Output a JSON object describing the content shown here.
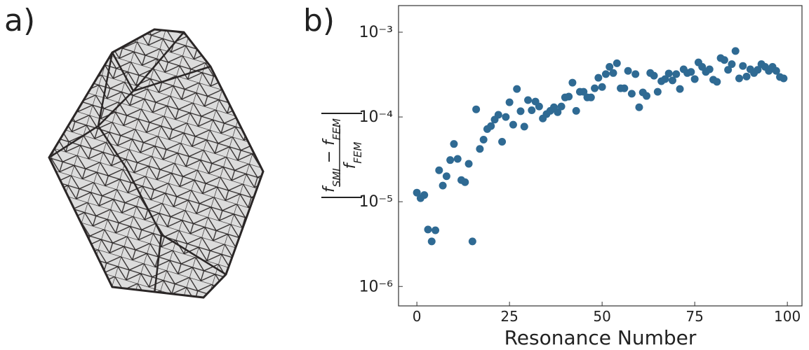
{
  "panel_labels": [
    "a)",
    "b)"
  ],
  "chart_data": {
    "type": "scatter",
    "xlabel": "Resonance Number",
    "ylabel": {
      "numerator": [
        "f",
        "SMI",
        " − f",
        "FEM"
      ],
      "denominator": [
        "f",
        "FEM"
      ]
    },
    "x": [
      0,
      1,
      2,
      3,
      4,
      5,
      6,
      7,
      8,
      9,
      10,
      11,
      12,
      13,
      14,
      15,
      16,
      17,
      18,
      19,
      20,
      21,
      22,
      23,
      24,
      25,
      26,
      27,
      28,
      29,
      30,
      31,
      32,
      33,
      34,
      35,
      36,
      37,
      38,
      39,
      40,
      41,
      42,
      43,
      44,
      45,
      46,
      47,
      48,
      49,
      50,
      51,
      52,
      53,
      54,
      55,
      56,
      57,
      58,
      59,
      60,
      61,
      62,
      63,
      64,
      65,
      66,
      67,
      68,
      69,
      70,
      71,
      72,
      73,
      74,
      75,
      76,
      77,
      78,
      79,
      80,
      81,
      82,
      83,
      84,
      85,
      86,
      87,
      88,
      89,
      90,
      91,
      92,
      93,
      94,
      95,
      96,
      97,
      98,
      99
    ],
    "series": [
      {
        "color": "#2f6a93",
        "values": [
          1.28e-05,
          1.1e-05,
          1.2e-05,
          4.7e-06,
          3.4e-06,
          4.6e-06,
          2.35e-05,
          1.55e-05,
          2e-05,
          3.1e-05,
          4.8e-05,
          3.2e-05,
          1.8e-05,
          1.7e-05,
          2.8e-05,
          3.4e-06,
          0.000123,
          4.2e-05,
          5.4e-05,
          7.2e-05,
          7.8e-05,
          9.3e-05,
          0.000106,
          5.1e-05,
          0.0001,
          0.000149,
          8.1e-05,
          0.000214,
          0.000117,
          7.7e-05,
          0.000158,
          0.00012,
          0.000152,
          0.000133,
          9.6e-05,
          0.000108,
          0.000118,
          0.00013,
          0.000114,
          0.000133,
          0.00017,
          0.000174,
          0.000254,
          0.000118,
          0.000198,
          0.000198,
          0.00017,
          0.00017,
          0.000218,
          0.00029,
          0.000226,
          0.00032,
          0.00039,
          0.00033,
          0.00043,
          0.000218,
          0.000218,
          0.00035,
          0.000188,
          0.00032,
          0.00013,
          0.000195,
          0.000177,
          0.00033,
          0.000307,
          0.000198,
          0.000264,
          0.00028,
          0.000326,
          0.00027,
          0.00032,
          0.000214,
          0.000365,
          0.00033,
          0.00034,
          0.00028,
          0.00044,
          0.00039,
          0.00034,
          0.000365,
          0.000275,
          0.00026,
          0.000495,
          0.00047,
          0.00036,
          0.00042,
          0.0006,
          0.000285,
          0.0004,
          0.0003,
          0.000365,
          0.00033,
          0.00036,
          0.00042,
          0.00039,
          0.00035,
          0.00039,
          0.00035,
          0.000296,
          0.000285
        ]
      }
    ],
    "xlim": [
      -4.95,
      103.95
    ],
    "xticks": [
      0,
      25,
      50,
      75,
      100
    ],
    "ylim": [
      5.9e-07,
      0.00206
    ],
    "yscale": "log",
    "yticks": [
      {
        "value": 1e-06,
        "label": "10⁻⁶"
      },
      {
        "value": 1e-05,
        "label": "10⁻⁵"
      },
      {
        "value": 0.0001,
        "label": "10⁻⁴"
      },
      {
        "value": 0.001,
        "label": "10⁻³"
      }
    ]
  }
}
